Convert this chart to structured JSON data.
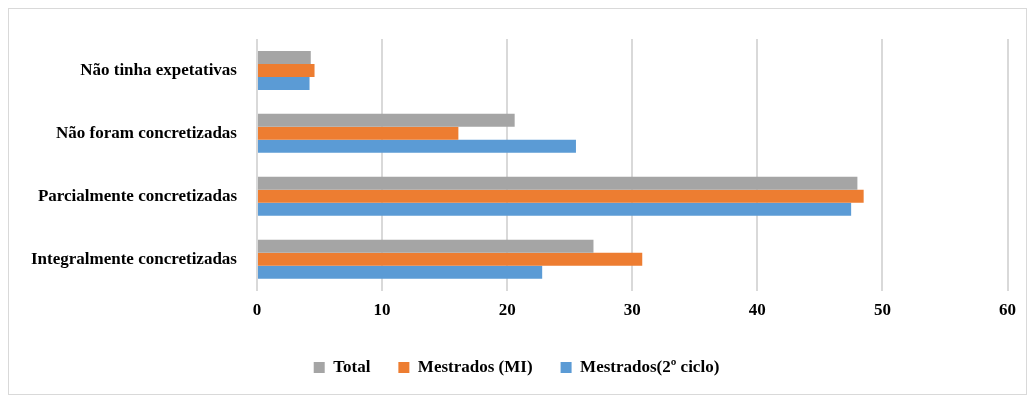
{
  "chart_data": {
    "type": "bar",
    "orientation": "horizontal",
    "categories": [
      "Não tinha expetativas",
      "Não foram concretizadas",
      "Parcialmente concretizadas",
      "Integralmente concretizadas"
    ],
    "series": [
      {
        "name": "Total",
        "color": "#a5a5a5",
        "values": [
          4.3,
          20.6,
          48.0,
          26.9
        ]
      },
      {
        "name": "Mestrados (MI)",
        "color": "#ed7d31",
        "values": [
          4.6,
          16.1,
          48.5,
          30.8
        ]
      },
      {
        "name": "Mestrados(2º ciclo)",
        "color": "#5b9bd5",
        "values": [
          4.2,
          25.5,
          47.5,
          22.8
        ]
      }
    ],
    "xlim": [
      0,
      60
    ],
    "xticks": [
      0,
      10,
      20,
      30,
      40,
      50,
      60
    ],
    "grid": "x",
    "legend": "bottom"
  }
}
